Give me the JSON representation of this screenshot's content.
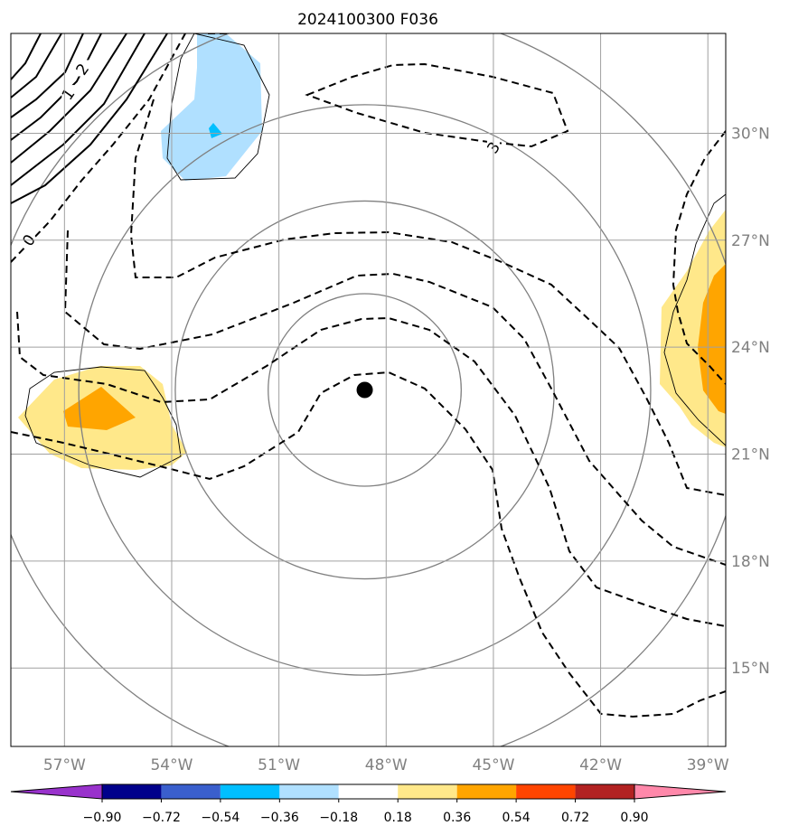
{
  "chart_data": {
    "type": "map-contour",
    "title": "2024100300 F036",
    "lon_ticks": [
      {
        "value": -57,
        "label": "57°W"
      },
      {
        "value": -54,
        "label": "54°W"
      },
      {
        "value": -51,
        "label": "51°W"
      },
      {
        "value": -48,
        "label": "48°W"
      },
      {
        "value": -45,
        "label": "45°W"
      },
      {
        "value": -42,
        "label": "42°W"
      },
      {
        "value": -39,
        "label": "39°W"
      }
    ],
    "lat_ticks": [
      {
        "value": 30,
        "label": "30°N"
      },
      {
        "value": 27,
        "label": "27°N"
      },
      {
        "value": 24,
        "label": "24°N"
      },
      {
        "value": 21,
        "label": "21°N"
      },
      {
        "value": 18,
        "label": "18°N"
      },
      {
        "value": 15,
        "label": "15°N"
      }
    ],
    "lon_range": [
      -58.5,
      -38.5
    ],
    "lat_range": [
      12.8,
      32.8
    ],
    "grid": true,
    "center": {
      "lon": -48.6,
      "lat": 22.8
    },
    "range_rings_deg": [
      2.7,
      5.3,
      8.0,
      10.7
    ],
    "contour_labels": [
      {
        "text": "2",
        "lon": -56.5,
        "lat": 31.8
      },
      {
        "text": "1",
        "lon": -56.9,
        "lat": 31.1
      },
      {
        "text": "0",
        "lon": -58.0,
        "lat": 27.0
      },
      {
        "text": "3",
        "lon": -45.0,
        "lat": 29.6
      }
    ],
    "colorbar": {
      "ticks": [
        "−0.90",
        "−0.72",
        "−0.54",
        "−0.36",
        "−0.18",
        "0.18",
        "0.36",
        "0.54",
        "0.72",
        "0.90"
      ],
      "colors": [
        "#9932cc",
        "#00008b",
        "#3a5fcd",
        "#00bfff",
        "#b0e0ff",
        "#ffffff",
        "#ffe88a",
        "#ffa500",
        "#ff4500",
        "#b22222",
        "#ff88aa"
      ]
    }
  }
}
